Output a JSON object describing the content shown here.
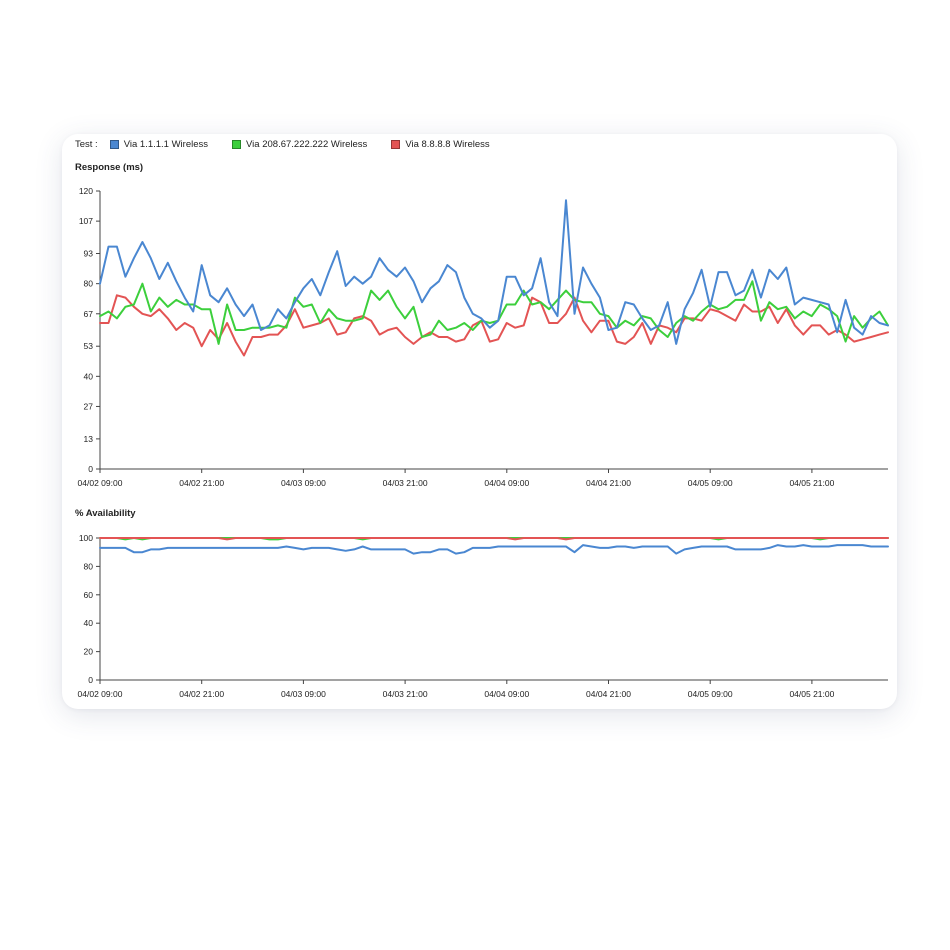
{
  "legend": {
    "title": "Test :",
    "items": [
      {
        "label": "Via 1.1.1.1 Wireless",
        "color": "#4a87d1"
      },
      {
        "label": "Via 208.67.222.222 Wireless",
        "color": "#3ccf3c"
      },
      {
        "label": "Via 8.8.8.8 Wireless",
        "color": "#e35454"
      }
    ]
  },
  "chart_data": [
    {
      "type": "line",
      "title": "Response (ms)",
      "xlabel": "",
      "ylabel": "",
      "ylim": [
        0,
        120
      ],
      "yticks": [
        0,
        13,
        27,
        40,
        53,
        67,
        80,
        93,
        107,
        120
      ],
      "xticks": [
        "04/02 09:00",
        "04/02 21:00",
        "04/03 09:00",
        "04/03 21:00",
        "04/04 09:00",
        "04/04 21:00",
        "04/05 09:00",
        "04/05 21:00"
      ],
      "series": [
        {
          "name": "Via 1.1.1.1 Wireless",
          "color": "#4a87d1",
          "values": [
            80,
            96,
            96,
            83,
            91,
            98,
            91,
            82,
            89,
            81,
            74,
            68,
            88,
            75,
            72,
            78,
            71,
            66,
            71,
            60,
            62,
            69,
            65,
            72,
            78,
            82,
            75,
            85,
            94,
            79,
            83,
            80,
            83,
            91,
            86,
            83,
            87,
            81,
            72,
            78,
            81,
            88,
            85,
            74,
            67,
            65,
            61,
            64,
            83,
            83,
            75,
            78,
            91,
            72,
            66,
            116,
            67,
            87,
            80,
            74,
            60,
            61,
            72,
            71,
            65,
            60,
            62,
            72,
            54,
            69,
            76,
            86,
            70,
            85,
            85,
            75,
            77,
            86,
            74,
            86,
            82,
            87,
            71,
            74,
            73,
            72,
            71,
            59,
            73,
            61,
            58,
            66,
            63,
            62
          ]
        },
        {
          "name": "Via 208.67.222.222 Wireless",
          "color": "#3ccf3c",
          "values": [
            66,
            68,
            65,
            70,
            71,
            80,
            68,
            74,
            70,
            73,
            71,
            71,
            69,
            69,
            54,
            71,
            60,
            60,
            61,
            61,
            61,
            62,
            61,
            74,
            70,
            71,
            63,
            69,
            65,
            64,
            64,
            65,
            77,
            73,
            77,
            70,
            65,
            70,
            57,
            58,
            64,
            60,
            61,
            63,
            60,
            64,
            63,
            64,
            71,
            71,
            77,
            71,
            72,
            69,
            73,
            77,
            73,
            72,
            72,
            67,
            66,
            61,
            64,
            62,
            66,
            65,
            60,
            57,
            63,
            66,
            64,
            68,
            71,
            69,
            70,
            73,
            73,
            81,
            64,
            72,
            69,
            70,
            65,
            68,
            66,
            71,
            69,
            66,
            55,
            66,
            61,
            65,
            68,
            62
          ]
        },
        {
          "name": "Via 8.8.8.8 Wireless",
          "color": "#e35454",
          "values": [
            63,
            63,
            75,
            74,
            70,
            67,
            66,
            69,
            65,
            60,
            63,
            61,
            53,
            60,
            56,
            63,
            55,
            49,
            57,
            57,
            58,
            58,
            62,
            69,
            61,
            62,
            63,
            65,
            58,
            59,
            65,
            66,
            64,
            58,
            60,
            61,
            57,
            54,
            57,
            59,
            57,
            57,
            55,
            56,
            62,
            64,
            55,
            56,
            63,
            61,
            62,
            74,
            72,
            63,
            63,
            67,
            74,
            64,
            59,
            64,
            64,
            55,
            54,
            57,
            63,
            54,
            62,
            61,
            59,
            65,
            65,
            64,
            69,
            68,
            66,
            64,
            71,
            68,
            68,
            70,
            63,
            69,
            62,
            58,
            62,
            62,
            58,
            60,
            58,
            55,
            56,
            57,
            58,
            59
          ]
        }
      ]
    },
    {
      "type": "line",
      "title": "% Availability",
      "xlabel": "",
      "ylabel": "",
      "ylim": [
        0,
        100
      ],
      "yticks": [
        0,
        20,
        40,
        60,
        80,
        100
      ],
      "xticks": [
        "04/02 09:00",
        "04/02 21:00",
        "04/03 09:00",
        "04/03 21:00",
        "04/04 09:00",
        "04/04 21:00",
        "04/05 09:00",
        "04/05 21:00"
      ],
      "series": [
        {
          "name": "Via 1.1.1.1 Wireless",
          "color": "#4a87d1",
          "values": [
            93,
            93,
            93,
            93,
            90,
            90,
            92,
            92,
            93,
            93,
            93,
            93,
            93,
            93,
            93,
            93,
            93,
            93,
            93,
            93,
            93,
            93,
            94,
            93,
            92,
            93,
            93,
            93,
            92,
            91,
            92,
            94,
            92,
            92,
            92,
            92,
            92,
            89,
            90,
            90,
            92,
            92,
            89,
            90,
            93,
            93,
            93,
            94,
            94,
            94,
            94,
            94,
            94,
            94,
            94,
            94,
            90,
            95,
            94,
            93,
            93,
            94,
            94,
            93,
            94,
            94,
            94,
            94,
            89,
            92,
            93,
            94,
            94,
            94,
            94,
            92,
            92,
            92,
            92,
            93,
            95,
            94,
            94,
            95,
            94,
            94,
            94,
            95,
            95,
            95,
            95,
            94,
            94,
            94
          ]
        },
        {
          "name": "Via 208.67.222.222 Wireless",
          "color": "#3ccf3c",
          "values": [
            100,
            100,
            100,
            99,
            100,
            99,
            100,
            100,
            100,
            100,
            100,
            100,
            100,
            100,
            100,
            100,
            100,
            100,
            100,
            100,
            99,
            99,
            100,
            100,
            100,
            100,
            100,
            100,
            100,
            100,
            100,
            99,
            100,
            100,
            100,
            100,
            100,
            100,
            100,
            100,
            100,
            100,
            100,
            100,
            100,
            100,
            100,
            100,
            100,
            100,
            100,
            100,
            100,
            100,
            100,
            100,
            100,
            100,
            100,
            100,
            100,
            100,
            100,
            100,
            100,
            100,
            100,
            100,
            100,
            100,
            100,
            100,
            100,
            99,
            100,
            100,
            100,
            100,
            100,
            100,
            100,
            100,
            100,
            100,
            100,
            99,
            100,
            100,
            100,
            100,
            100,
            100,
            100,
            100
          ]
        },
        {
          "name": "Via 8.8.8.8 Wireless",
          "color": "#e35454",
          "values": [
            100,
            100,
            100,
            100,
            100,
            100,
            100,
            100,
            100,
            100,
            100,
            100,
            100,
            100,
            100,
            99,
            100,
            100,
            100,
            100,
            100,
            100,
            100,
            100,
            100,
            100,
            100,
            100,
            100,
            100,
            100,
            100,
            100,
            100,
            100,
            100,
            100,
            100,
            100,
            100,
            100,
            100,
            100,
            100,
            100,
            100,
            100,
            100,
            100,
            99,
            100,
            100,
            100,
            100,
            100,
            99,
            100,
            100,
            100,
            100,
            100,
            100,
            100,
            100,
            100,
            100,
            100,
            100,
            100,
            100,
            100,
            100,
            100,
            100,
            100,
            100,
            100,
            100,
            100,
            100,
            100,
            100,
            100,
            100,
            100,
            100,
            100,
            100,
            100,
            100,
            100,
            100,
            100,
            100
          ]
        }
      ]
    }
  ]
}
